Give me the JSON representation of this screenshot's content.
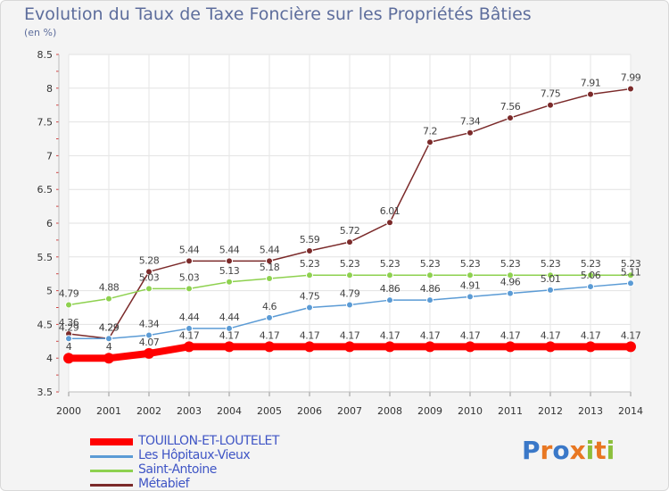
{
  "title": "Evolution du Taux de Taxe Foncière sur les Propriétés Bâties",
  "unit": "(en %)",
  "logo": "Proxiti",
  "chart_data": {
    "type": "line",
    "title": "Evolution du Taux de Taxe Foncière sur les Propriétés Bâties",
    "ylabel": "(en %)",
    "xlabel": "",
    "ylim": [
      3.5,
      8.5
    ],
    "yticks": [
      "3.5",
      "4",
      "4.5",
      "5",
      "5.5",
      "6",
      "6.5",
      "7",
      "7.5",
      "8",
      "8.5"
    ],
    "categories": [
      "2000",
      "2001",
      "2002",
      "2003",
      "2004",
      "2005",
      "2006",
      "2007",
      "2008",
      "2009",
      "2010",
      "2011",
      "2012",
      "2013",
      "2014"
    ],
    "legend_position": "bottom-left",
    "grid": true,
    "series": [
      {
        "name": "TOUILLON-ET-LOUTELET",
        "color": "#ff0000",
        "values": [
          4,
          4,
          4.07,
          4.17,
          4.17,
          4.17,
          4.17,
          4.17,
          4.17,
          4.17,
          4.17,
          4.17,
          4.17,
          4.17,
          4.17
        ],
        "labels": [
          "4",
          "4",
          "4.07",
          "4.17",
          "4.17",
          "4.17",
          "4.17",
          "4.17",
          "4.17",
          "4.17",
          "4.17",
          "4.17",
          "4.17",
          "4.17",
          "4.17"
        ]
      },
      {
        "name": "Les Hôpitaux-Vieux",
        "color": "#5b9bd5",
        "values": [
          4.29,
          4.29,
          4.34,
          4.44,
          4.44,
          4.6,
          4.75,
          4.79,
          4.86,
          4.86,
          4.91,
          4.96,
          5.01,
          5.06,
          5.11
        ],
        "labels": [
          "4.29",
          "4.29",
          "4.34",
          "4.44",
          "4.44",
          "4.6",
          "4.75",
          "4.79",
          "4.86",
          "4.86",
          "4.91",
          "4.96",
          "5.01",
          "5.06",
          "5.11"
        ]
      },
      {
        "name": "Saint-Antoine",
        "color": "#8ed14f",
        "values": [
          4.79,
          4.88,
          5.03,
          5.03,
          5.13,
          5.18,
          5.23,
          5.23,
          5.23,
          5.23,
          5.23,
          5.23,
          5.23,
          5.23,
          5.23
        ],
        "labels": [
          "4.79",
          "4.88",
          "5.03",
          "5.03",
          "5.13",
          "5.18",
          "5.23",
          "5.23",
          "5.23",
          "5.23",
          "5.23",
          "5.23",
          "5.23",
          "5.23",
          "5.23"
        ]
      },
      {
        "name": "Métabief",
        "color": "#7b2a2a",
        "values": [
          4.36,
          4.29,
          5.28,
          5.44,
          5.44,
          5.44,
          5.59,
          5.72,
          6.01,
          7.2,
          7.34,
          7.56,
          7.75,
          7.91,
          7.99
        ],
        "labels": [
          "4.36",
          "4.29",
          "5.28",
          "5.44",
          "5.44",
          "5.44",
          "5.59",
          "5.72",
          "6.01",
          "7.2",
          "7.34",
          "7.56",
          "7.75",
          "7.91",
          "7.99"
        ]
      }
    ]
  }
}
